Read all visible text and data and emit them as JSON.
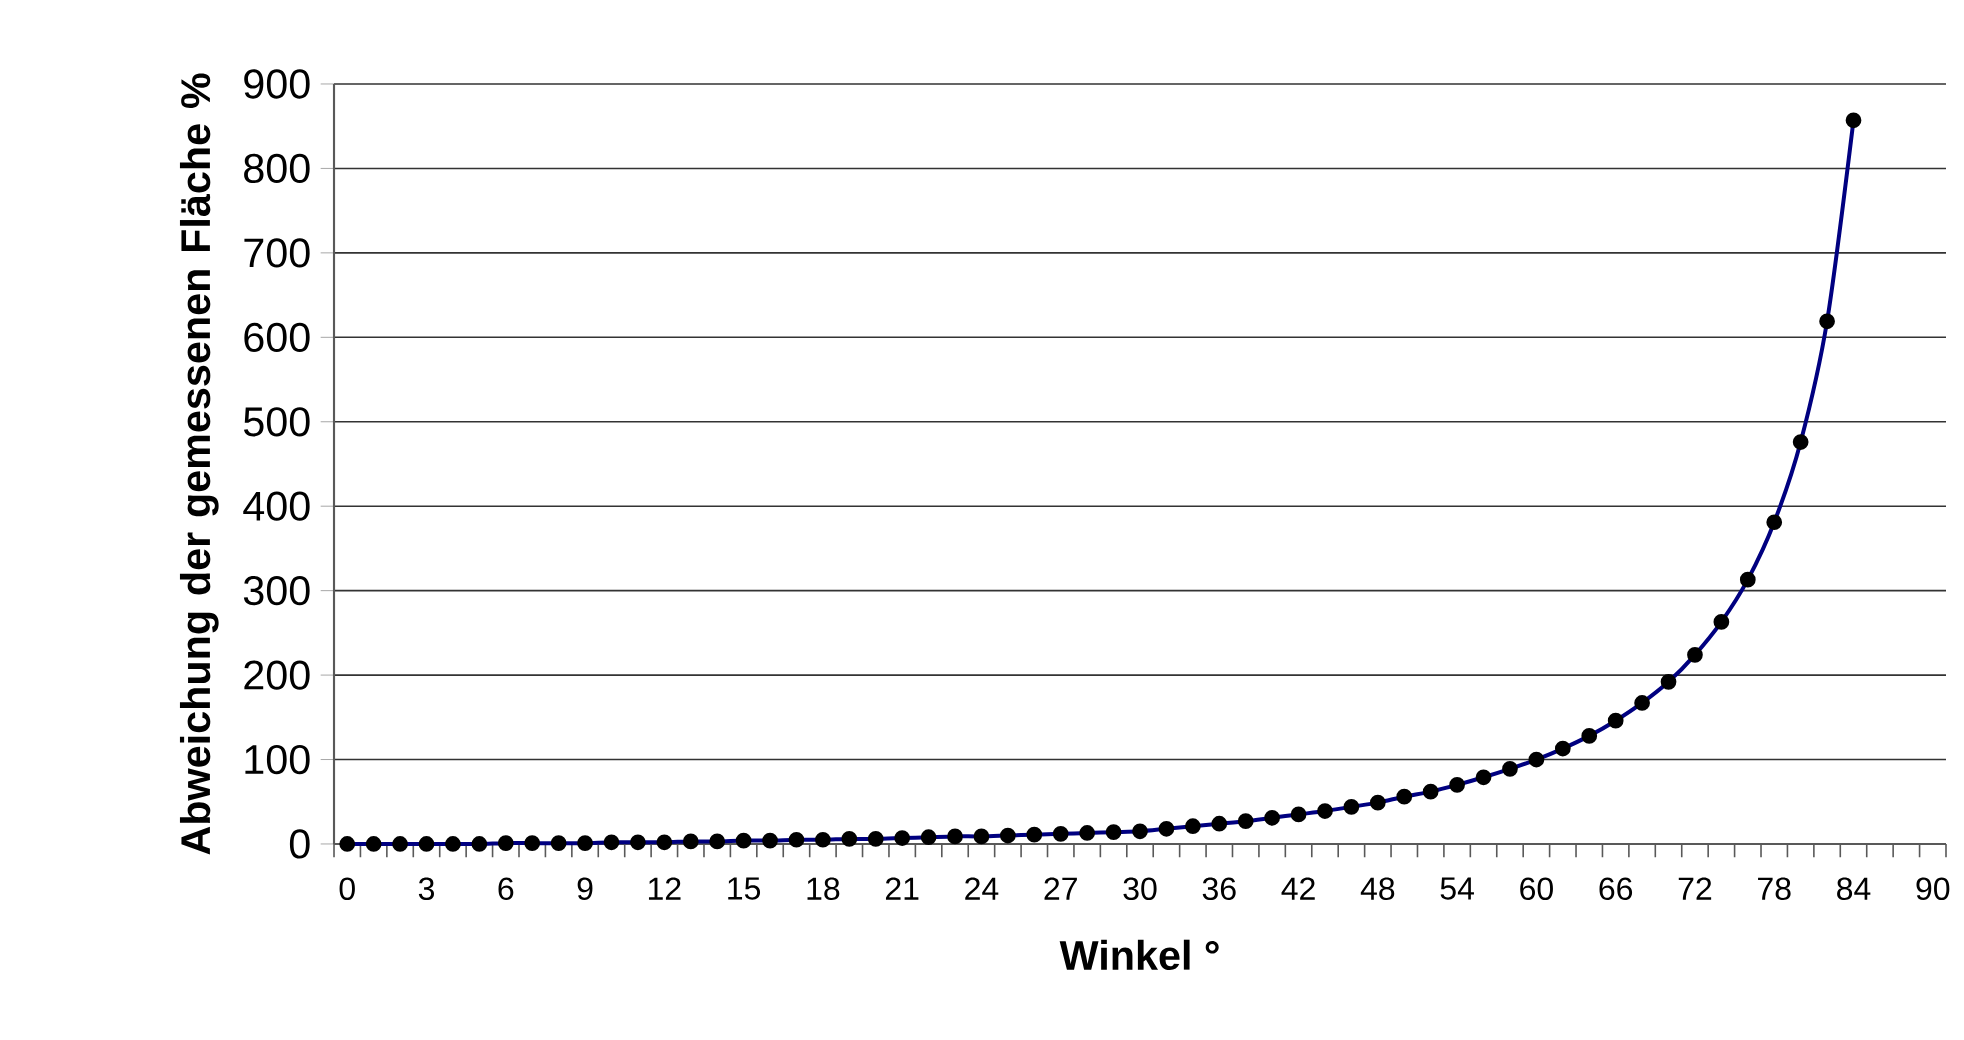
{
  "chart_data": {
    "type": "line",
    "xlabel": "Winkel °",
    "ylabel": "Abweichung der gemessenen Fläche %",
    "categories": [
      "0",
      null,
      null,
      "3",
      null,
      null,
      "6",
      null,
      null,
      "9",
      null,
      null,
      "12",
      null,
      null,
      "15",
      null,
      null,
      "18",
      null,
      null,
      "21",
      null,
      null,
      "24",
      null,
      null,
      "27",
      null,
      null,
      "30",
      null,
      null,
      "36",
      null,
      null,
      "42",
      null,
      null,
      "48",
      null,
      null,
      "54",
      null,
      null,
      "60",
      null,
      null,
      "66",
      null,
      null,
      "72",
      null,
      null,
      "78",
      null,
      null,
      "84",
      null,
      null,
      "90"
    ],
    "series": [
      {
        "color": "#000080",
        "values": [
          0,
          0,
          0,
          0,
          0,
          0,
          1,
          1,
          1,
          1,
          2,
          2,
          2,
          3,
          3,
          4,
          4,
          5,
          5,
          6,
          6,
          7,
          8,
          9,
          9,
          10,
          11,
          12,
          13,
          14,
          15,
          18,
          21,
          24,
          27,
          31,
          35,
          39,
          44,
          49,
          56,
          62,
          70,
          79,
          89,
          100,
          113,
          128,
          146,
          167,
          192,
          224,
          263,
          313,
          381,
          476,
          619,
          857,
          null,
          null,
          null
        ]
      }
    ],
    "ylim": [
      0,
      900
    ],
    "yticks": [
      0,
      100,
      200,
      300,
      400,
      500,
      600,
      700,
      800,
      900
    ],
    "grid": "y",
    "marker": "circle",
    "line_style": "solid"
  }
}
